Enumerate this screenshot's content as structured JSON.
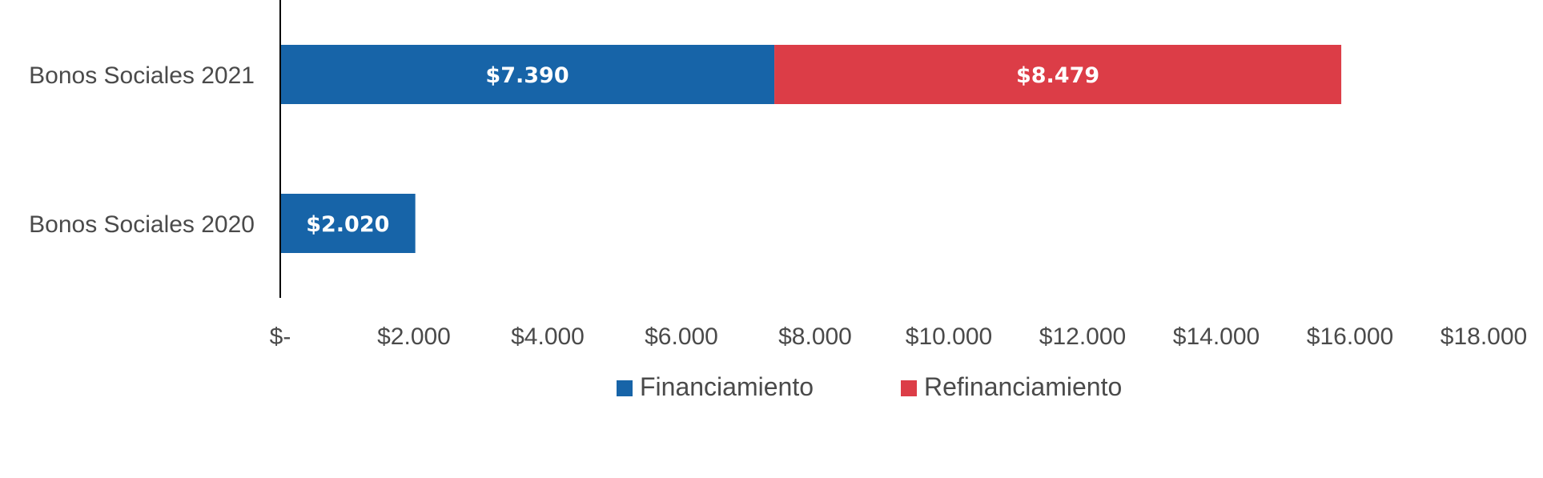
{
  "chart_data": {
    "type": "bar",
    "orientation": "horizontal",
    "stacked": true,
    "categories": [
      "Bonos Sociales 2021",
      "Bonos Sociales 2020"
    ],
    "series": [
      {
        "name": "Financiamiento",
        "values": [
          7390,
          2020
        ],
        "labels": [
          "$7.390",
          "$2.020"
        ],
        "color": "#1764a8"
      },
      {
        "name": "Refinanciamiento",
        "values": [
          8479,
          0
        ],
        "labels": [
          "$8.479",
          ""
        ],
        "color": "#dc3d47"
      }
    ],
    "xlim": [
      0,
      18000
    ],
    "x_ticks": [
      0,
      2000,
      4000,
      6000,
      8000,
      10000,
      12000,
      14000,
      16000,
      18000
    ],
    "x_tick_labels": [
      "$-",
      "$2.000",
      "$4.000",
      "$6.000",
      "$8.000",
      "$10.000",
      "$12.000",
      "$14.000",
      "$16.000",
      "$18.000"
    ],
    "grid": false,
    "legend_position": "bottom",
    "title": "",
    "xlabel": "",
    "ylabel": ""
  }
}
